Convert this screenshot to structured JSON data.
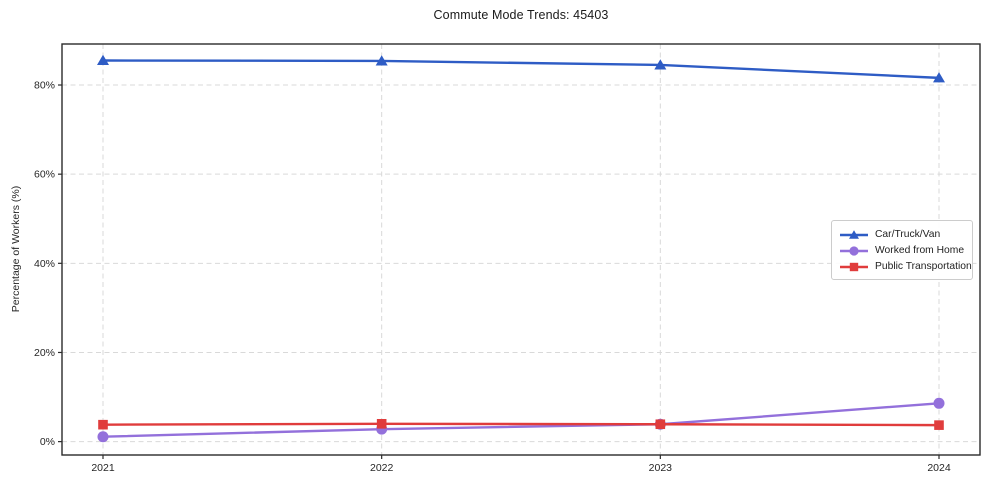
{
  "chart_data": {
    "type": "line",
    "title": "Commute Mode Trends: 45403",
    "xlabel": "",
    "ylabel": "Percentage of Workers (%)",
    "x": [
      2021,
      2022,
      2023,
      2024
    ],
    "xtick_labels": [
      "2021",
      "2022",
      "2023",
      "2024"
    ],
    "yticks": [
      0,
      20,
      40,
      60,
      80
    ],
    "ytick_labels": [
      "0%",
      "20%",
      "40%",
      "60%",
      "80%"
    ],
    "ylim": [
      -3,
      89.2
    ],
    "grid": true,
    "grid_color": "#d9d9d9",
    "legend_position": "center-right",
    "series": [
      {
        "name": "Car/Truck/Van",
        "color": "#2e5cc5",
        "marker": "triangle",
        "values": [
          85.5,
          85.4,
          84.5,
          81.6
        ]
      },
      {
        "name": "Worked from Home",
        "color": "#9370db",
        "marker": "circle",
        "values": [
          1.1,
          2.8,
          3.9,
          8.6
        ]
      },
      {
        "name": "Public Transportation",
        "color": "#e03c3c",
        "marker": "square",
        "values": [
          3.8,
          4.0,
          3.9,
          3.7
        ]
      }
    ]
  }
}
